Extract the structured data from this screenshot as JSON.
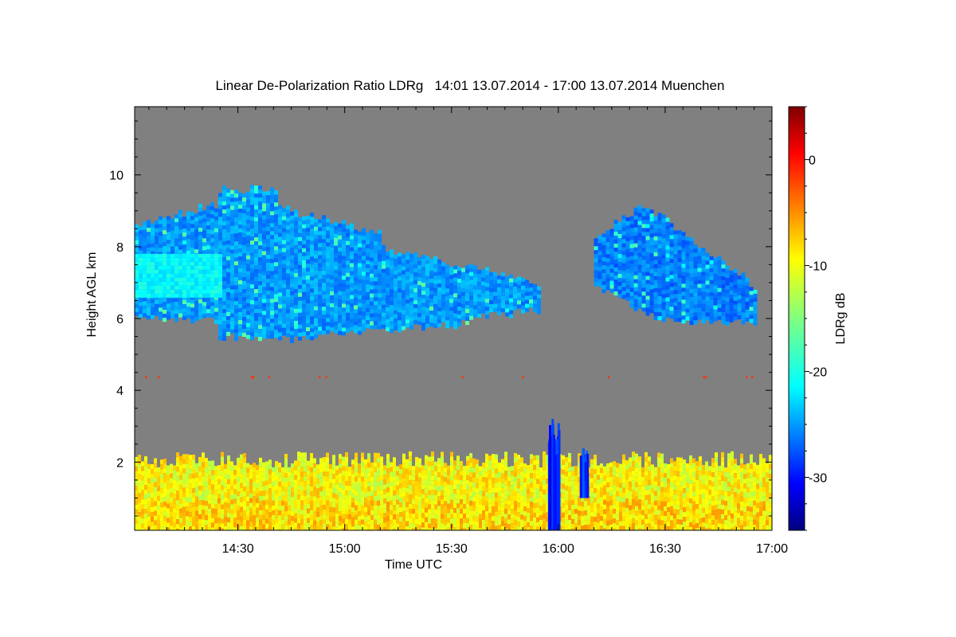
{
  "title": "Linear De-Polarization Ratio LDRg   14:01 13.07.2014 - 17:00 13.07.2014 Muenchen",
  "chart_data": {
    "type": "heatmap",
    "title": "Linear De-Polarization Ratio LDRg   14:01 13.07.2014 - 17:00 13.07.2014 Muenchen",
    "xlabel": "Time UTC",
    "ylabel": "Height AGL km",
    "x_range": [
      "14:01",
      "17:00"
    ],
    "xlim_minutes": [
      -119,
      60
    ],
    "x_ticks": [
      {
        "label": "14:30",
        "minutes": -90
      },
      {
        "label": "15:00",
        "minutes": -60
      },
      {
        "label": "15:30",
        "minutes": -30
      },
      {
        "label": "16:00",
        "minutes": 0
      },
      {
        "label": "16:30",
        "minutes": 30
      },
      {
        "label": "17:00",
        "minutes": 60
      }
    ],
    "ylim": [
      0.1,
      11.9
    ],
    "y_ticks": [
      2,
      4,
      6,
      8,
      10
    ],
    "colorbar": {
      "label": "LDRg dB",
      "range": [
        -35,
        5
      ],
      "ticks": [
        0,
        -10,
        -20,
        -30
      ],
      "colormap": "jet"
    },
    "background_color": "#808080",
    "features": {
      "boundary_layer": {
        "top_km": 2.1,
        "ldr_db": -10,
        "description": "yellow/orange aerosol layer"
      },
      "cirrus_layer_1": {
        "start": "14:01",
        "end": "15:55",
        "bottom_km": 5.5,
        "top_km": 9.9,
        "ldr_db": -24
      },
      "cirrus_layer_2": {
        "start": "16:10",
        "end": "16:55",
        "bottom_km": 5.8,
        "top_km": 9.2,
        "ldr_db": -25
      },
      "precip_streaks": {
        "start": "15:57",
        "end": "16:13",
        "top_km": 3.2,
        "ldr_db": -30
      }
    }
  }
}
